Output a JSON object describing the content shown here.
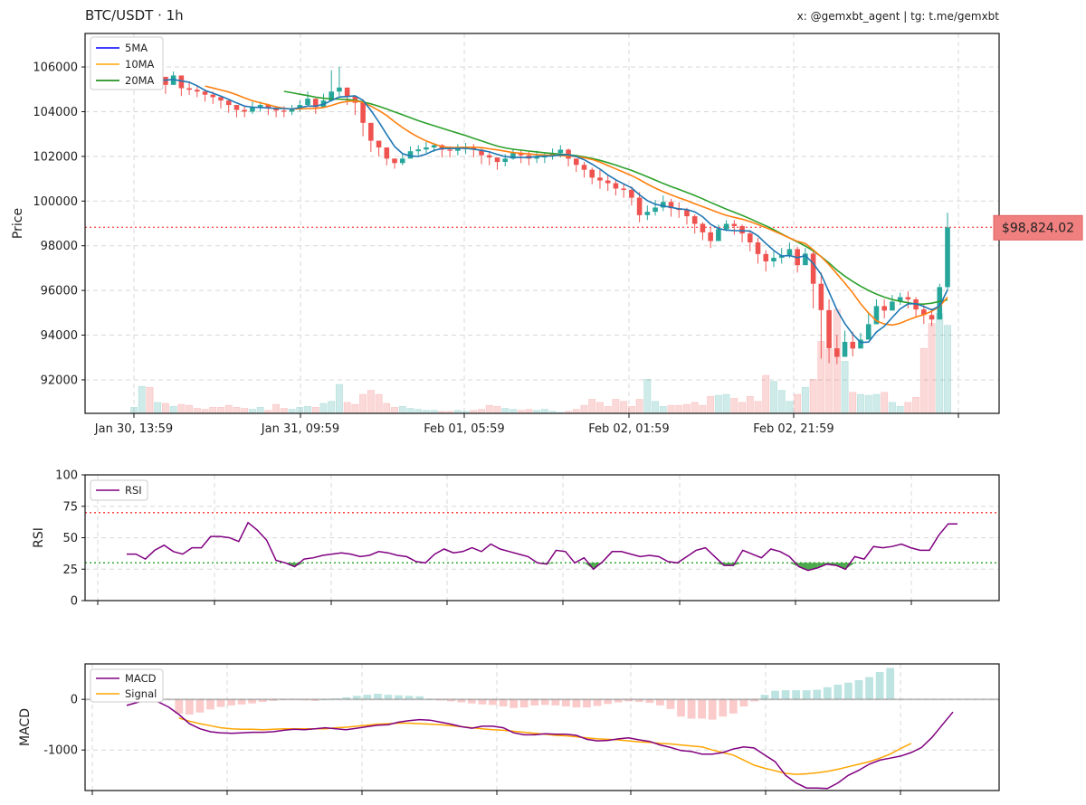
{
  "header": {
    "title": "BTC/USDT · 1h",
    "credit": "x: @gemxbt_agent | tg: t.me/gemxbt"
  },
  "colors": {
    "up": "#26a69a",
    "down": "#ef5350",
    "ma5": "#1f77b4",
    "ma10": "#ff7f0e",
    "ma20": "#2ca02c",
    "rsi": "#800080",
    "macd": "#800080",
    "signal": "#ffa500",
    "last_price_line": "#ff5555",
    "last_price_box": "#f08080",
    "overbought": "#ff4444",
    "oversold": "#33aa33"
  },
  "chart_data": [
    {
      "type": "candlestick",
      "name": "price",
      "ylabel": "Price",
      "ylim": [
        90500,
        107500
      ],
      "yticks": [
        92000,
        94000,
        96000,
        98000,
        100000,
        102000,
        104000,
        106000
      ],
      "xtick_labels": [
        "Jan 30, 13:59",
        "Jan 31, 09:59",
        "Feb 01, 05:59",
        "Feb 02, 01:59",
        "Feb 02, 21:59"
      ],
      "grid": true,
      "legend": {
        "position": "top-left",
        "entries": [
          "5MA",
          "10MA",
          "20MA"
        ]
      },
      "last_price": 98824.02,
      "last_price_label": "$98,824.02",
      "close": [
        105420,
        105500,
        105380,
        105560,
        105200,
        105620,
        105050,
        104980,
        104900,
        104760,
        104650,
        104500,
        104300,
        104080,
        104000,
        104200,
        104300,
        104150,
        104050,
        104000,
        104100,
        104300,
        104580,
        104200,
        104500,
        104900,
        105080,
        104680,
        104400,
        103500,
        102700,
        102400,
        101900,
        101700,
        101900,
        102230,
        102310,
        102400,
        102500,
        102300,
        102250,
        102350,
        102380,
        102300,
        102050,
        101950,
        101750,
        101900,
        102150,
        102050,
        101900,
        102000,
        102000,
        102150,
        102300,
        101900,
        101620,
        101400,
        101050,
        100920,
        100800,
        100560,
        100500,
        100150,
        99370,
        99520,
        99710,
        99960,
        99680,
        99600,
        99320,
        98980,
        98600,
        98210,
        98740,
        98980,
        98880,
        98550,
        98150,
        97630,
        97300,
        97460,
        97570,
        97850,
        97130,
        97650,
        96300,
        95120,
        93410,
        93030,
        93700,
        93400,
        93800,
        94490,
        95300,
        95100,
        95500,
        95700,
        95600,
        95150,
        94900,
        94700,
        96150,
        98824
      ],
      "high": [
        105600,
        105700,
        105700,
        105700,
        105400,
        105800,
        105400,
        105300,
        105150,
        105000,
        104900,
        104700,
        104500,
        104300,
        104250,
        104450,
        104450,
        104350,
        104250,
        104250,
        104300,
        104500,
        104900,
        104600,
        104800,
        105850,
        106000,
        105000,
        104700,
        104550,
        103400,
        102700,
        102300,
        101900,
        102150,
        102450,
        102500,
        102650,
        102600,
        102550,
        102450,
        102550,
        102600,
        102550,
        102350,
        102200,
        101950,
        102100,
        102350,
        102300,
        102200,
        102250,
        102200,
        102350,
        102500,
        102350,
        101900,
        101750,
        101500,
        101400,
        101150,
        100950,
        100750,
        100650,
        100400,
        99800,
        100050,
        100250,
        100100,
        99950,
        99700,
        99400,
        99050,
        98800,
        98950,
        99150,
        99150,
        98950,
        98700,
        98350,
        97800,
        97750,
        97900,
        98150,
        97950,
        97900,
        97800,
        96800,
        95600,
        94000,
        94200,
        94150,
        94100,
        95000,
        95600,
        95600,
        95800,
        95900,
        95950,
        95700,
        95350,
        95200,
        96300,
        99480
      ],
      "low": [
        105100,
        105150,
        105050,
        105250,
        104800,
        105300,
        104700,
        104750,
        104650,
        104450,
        104350,
        104150,
        103950,
        103750,
        103750,
        103900,
        104000,
        103850,
        103750,
        103750,
        103850,
        104000,
        104250,
        103900,
        104200,
        104650,
        104700,
        104300,
        103850,
        102900,
        102200,
        102000,
        101600,
        101450,
        101600,
        101950,
        102050,
        102150,
        102200,
        101950,
        101950,
        102050,
        102100,
        101950,
        101650,
        101600,
        101400,
        101550,
        101850,
        101700,
        101600,
        101700,
        101700,
        101850,
        101950,
        101550,
        101300,
        101050,
        100750,
        100550,
        100450,
        100250,
        100150,
        99800,
        99050,
        99150,
        99350,
        99550,
        99300,
        99250,
        98950,
        98550,
        98250,
        97900,
        98350,
        98650,
        98500,
        98150,
        97750,
        97200,
        96850,
        97050,
        97200,
        97450,
        96800,
        97150,
        95200,
        92950,
        92750,
        92700,
        93250,
        93050,
        93450,
        94150,
        94900,
        94750,
        95150,
        95350,
        95200,
        94800,
        94500,
        94400,
        95500,
        96000
      ],
      "volume": [
        0.3,
        1.35,
        1.3,
        0.55,
        0.5,
        0.35,
        0.45,
        0.4,
        0.25,
        0.2,
        0.3,
        0.3,
        0.4,
        0.3,
        0.25,
        0.2,
        0.3,
        0.15,
        0.45,
        0.25,
        0.2,
        0.3,
        0.35,
        0.3,
        0.5,
        0.6,
        1.45,
        0.55,
        0.45,
        0.95,
        1.15,
        0.95,
        0.5,
        0.3,
        0.35,
        0.25,
        0.2,
        0.15,
        0.15,
        0.1,
        0.1,
        0.15,
        0.1,
        0.15,
        0.2,
        0.4,
        0.35,
        0.25,
        0.2,
        0.15,
        0.2,
        0.15,
        0.2,
        0.1,
        0.05,
        0.1,
        0.2,
        0.4,
        0.7,
        0.55,
        0.35,
        0.7,
        0.6,
        0.35,
        0.7,
        1.7,
        0.6,
        0.35,
        0.4,
        0.4,
        0.45,
        0.55,
        0.4,
        0.85,
        0.9,
        0.95,
        0.75,
        0.55,
        0.85,
        0.6,
        1.9,
        1.6,
        1.15,
        0.6,
        0.95,
        1.3,
        1.7,
        3.6,
        3.2,
        5.2,
        2.6,
        1.05,
        0.95,
        0.9,
        0.95,
        1.05,
        0.55,
        0.35,
        0.55,
        0.8,
        3.25,
        4.5,
        5.0,
        4.4
      ],
      "ma5": [
        105200,
        105290,
        105352,
        105420,
        105410,
        105440,
        105380,
        105320,
        105160,
        104950,
        104830,
        104700,
        104550,
        104390,
        104250,
        104200,
        104190,
        104170,
        104150,
        104140,
        104120,
        104180,
        104250,
        104250,
        104330,
        104500,
        104660,
        104680,
        104710,
        104510,
        104060,
        103540,
        102980,
        102440,
        102120,
        102020,
        102000,
        102100,
        102270,
        102350,
        102350,
        102360,
        102360,
        102320,
        102270,
        102200,
        102090,
        101990,
        101950,
        101950,
        101950,
        101990,
        102010,
        102020,
        102070,
        102070,
        101990,
        101850,
        101650,
        101430,
        101170,
        100950,
        100770,
        100590,
        100280,
        100020,
        99860,
        99780,
        99720,
        99650,
        99620,
        99520,
        99300,
        98960,
        98770,
        98700,
        98680,
        98670,
        98660,
        98440,
        98100,
        97790,
        97540,
        97560,
        97470,
        97560,
        97210,
        96720,
        95920,
        95130,
        94520,
        94040,
        93670,
        93690,
        94140,
        94400,
        94790,
        95170,
        95400,
        95410,
        95280,
        95130,
        95300,
        96030
      ],
      "ma10": [
        null,
        null,
        null,
        null,
        null,
        null,
        null,
        null,
        null,
        105150,
        105060,
        104970,
        104880,
        104760,
        104620,
        104490,
        104400,
        104310,
        104220,
        104150,
        104120,
        104130,
        104140,
        104150,
        104190,
        104280,
        104390,
        104460,
        104480,
        104420,
        104250,
        104050,
        103830,
        103550,
        103290,
        103060,
        102860,
        102690,
        102550,
        102440,
        102400,
        102400,
        102410,
        102410,
        102390,
        102340,
        102290,
        102230,
        102170,
        102140,
        102110,
        102080,
        102060,
        102050,
        102040,
        102020,
        101990,
        101940,
        101860,
        101740,
        101590,
        101440,
        101290,
        101140,
        100960,
        100760,
        100580,
        100420,
        100280,
        100140,
        100020,
        99880,
        99750,
        99620,
        99480,
        99360,
        99270,
        99190,
        99080,
        98950,
        98810,
        98660,
        98510,
        98350,
        98200,
        98100,
        97820,
        97510,
        97150,
        96740,
        96330,
        95890,
        95400,
        94990,
        94640,
        94500,
        94450,
        94530,
        94680,
        94810,
        94920,
        95070,
        95290,
        95700
      ],
      "ma20": [
        null,
        null,
        null,
        null,
        null,
        null,
        null,
        null,
        null,
        null,
        null,
        null,
        null,
        null,
        null,
        null,
        null,
        null,
        null,
        104910,
        104850,
        104780,
        104720,
        104650,
        104600,
        104570,
        104560,
        104540,
        104510,
        104440,
        104350,
        104240,
        104120,
        103990,
        103860,
        103730,
        103600,
        103480,
        103370,
        103260,
        103150,
        103040,
        102930,
        102810,
        102690,
        102570,
        102460,
        102380,
        102320,
        102280,
        102240,
        102200,
        102160,
        102130,
        102100,
        102070,
        102030,
        101980,
        101910,
        101820,
        101720,
        101610,
        101490,
        101370,
        101230,
        101090,
        100940,
        100790,
        100650,
        100520,
        100390,
        100250,
        100100,
        99940,
        99790,
        99640,
        99500,
        99360,
        99210,
        99050,
        98890,
        98720,
        98530,
        98350,
        98170,
        97990,
        97770,
        97520,
        97230,
        96910,
        96640,
        96400,
        96190,
        96000,
        95840,
        95700,
        95590,
        95510,
        95450,
        95390,
        95390,
        95430,
        95510,
        95580
      ]
    },
    {
      "type": "line",
      "name": "rsi",
      "ylabel": "RSI",
      "ylim": [
        0,
        100
      ],
      "yticks": [
        0,
        25,
        50,
        75,
        100
      ],
      "overbought": 70,
      "oversold": 30,
      "legend": {
        "position": "top-left",
        "entries": [
          "RSI"
        ]
      },
      "values": [
        37,
        37,
        33,
        40,
        44,
        39,
        37,
        42,
        42,
        51,
        51,
        50,
        47,
        62,
        56,
        48,
        32,
        30,
        27,
        33,
        34,
        36,
        37,
        38,
        37,
        35,
        36,
        39,
        38,
        36,
        35,
        31,
        30,
        37,
        41,
        38,
        39,
        42,
        39,
        45,
        41,
        39,
        37,
        35,
        30,
        29,
        40,
        39,
        30,
        34,
        25,
        31,
        39,
        39,
        37,
        35,
        36,
        35,
        31,
        30,
        35,
        40,
        42,
        35,
        28,
        28,
        40,
        37,
        34,
        41,
        39,
        35,
        27,
        24,
        26,
        29,
        28,
        25,
        35,
        33,
        43,
        42,
        43,
        45,
        42,
        40,
        40,
        52,
        61,
        61
      ]
    },
    {
      "type": "line",
      "name": "macd",
      "ylabel": "MACD",
      "ylim": [
        -1800,
        700
      ],
      "yticks": [
        -1000,
        0
      ],
      "legend": {
        "position": "top-left",
        "entries": [
          "MACD",
          "Signal"
        ]
      },
      "macd": [
        -120,
        -60,
        0,
        -50,
        -150,
        -300,
        -480,
        -580,
        -640,
        -660,
        -670,
        -660,
        -650,
        -650,
        -640,
        -610,
        -590,
        -600,
        -580,
        -560,
        -580,
        -600,
        -570,
        -540,
        -510,
        -500,
        -450,
        -420,
        -400,
        -410,
        -450,
        -490,
        -540,
        -570,
        -530,
        -530,
        -560,
        -660,
        -700,
        -700,
        -680,
        -690,
        -690,
        -710,
        -790,
        -820,
        -810,
        -780,
        -760,
        -800,
        -830,
        -900,
        -950,
        -1010,
        -1030,
        -1080,
        -1080,
        -1050,
        -980,
        -940,
        -960,
        -1100,
        -1230,
        -1500,
        -1650,
        -1750,
        -1750,
        -1760,
        -1650,
        -1500,
        -1400,
        -1280,
        -1200,
        -1160,
        -1120,
        -1050,
        -950,
        -750,
        -500,
        -250
      ],
      "signal": [
        null,
        null,
        null,
        null,
        null,
        -370,
        -430,
        -480,
        -520,
        -560,
        -580,
        -590,
        -590,
        -600,
        -590,
        -580,
        -580,
        -580,
        -580,
        -580,
        -560,
        -550,
        -530,
        -510,
        -490,
        -480,
        -470,
        -470,
        -480,
        -490,
        -500,
        -520,
        -540,
        -560,
        -580,
        -600,
        -610,
        -630,
        -650,
        -670,
        -690,
        -710,
        -720,
        -740,
        -760,
        -780,
        -790,
        -800,
        -820,
        -840,
        -850,
        -870,
        -880,
        -900,
        -920,
        -940,
        -1000,
        -1050,
        -1100,
        -1200,
        -1300,
        -1360,
        -1410,
        -1460,
        -1480,
        -1470,
        -1450,
        -1420,
        -1380,
        -1330,
        -1280,
        -1230,
        -1160,
        -1080,
        -970,
        -870
      ],
      "histogram": [
        null,
        null,
        null,
        null,
        null,
        -280,
        -300,
        -260,
        -200,
        -150,
        -120,
        -100,
        -80,
        -50,
        -30,
        -10,
        -10,
        -20,
        -30,
        0,
        20,
        40,
        70,
        90,
        110,
        90,
        80,
        70,
        60,
        10,
        -20,
        -40,
        -60,
        -80,
        -100,
        -110,
        -140,
        -170,
        -160,
        -120,
        -110,
        -120,
        -140,
        -160,
        -160,
        -130,
        -90,
        -60,
        -40,
        -50,
        -70,
        -120,
        -190,
        -340,
        -380,
        -380,
        -400,
        -340,
        -280,
        -140,
        -40,
        90,
        170,
        180,
        180,
        180,
        190,
        240,
        290,
        330,
        380,
        440,
        540,
        620
      ]
    }
  ]
}
